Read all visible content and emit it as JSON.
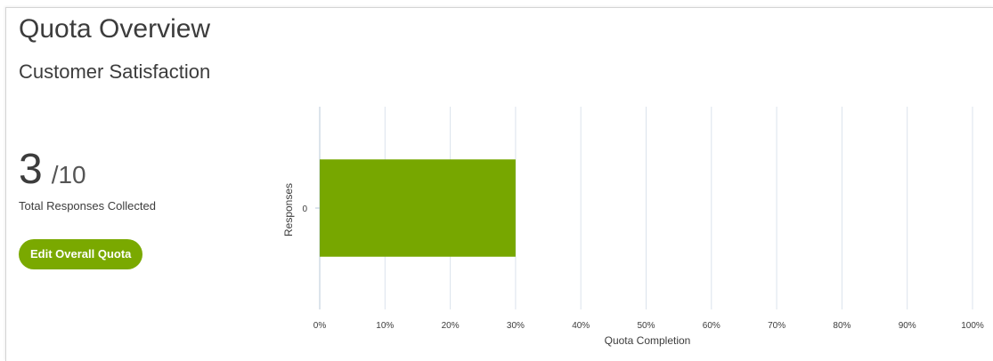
{
  "header": {
    "title": "Quota Overview",
    "subtitle": "Customer Satisfaction"
  },
  "summary": {
    "collected": "3",
    "total": "/10",
    "label": "Total Responses Collected",
    "edit_button_label": "Edit Overall Quota"
  },
  "colors": {
    "accent": "#7aa900",
    "bar": "#77a700",
    "gridline": "#dbe3ec",
    "axis": "#b9c8d8"
  },
  "chart_data": {
    "type": "bar",
    "orientation": "horizontal",
    "categories": [
      "0"
    ],
    "values": [
      30
    ],
    "xlabel": "Quota Completion",
    "ylabel": "Responses",
    "xlim": [
      0,
      100
    ],
    "x_ticks": [
      "0%",
      "10%",
      "20%",
      "30%",
      "40%",
      "50%",
      "60%",
      "70%",
      "80%",
      "90%",
      "100%"
    ],
    "grid": true
  }
}
